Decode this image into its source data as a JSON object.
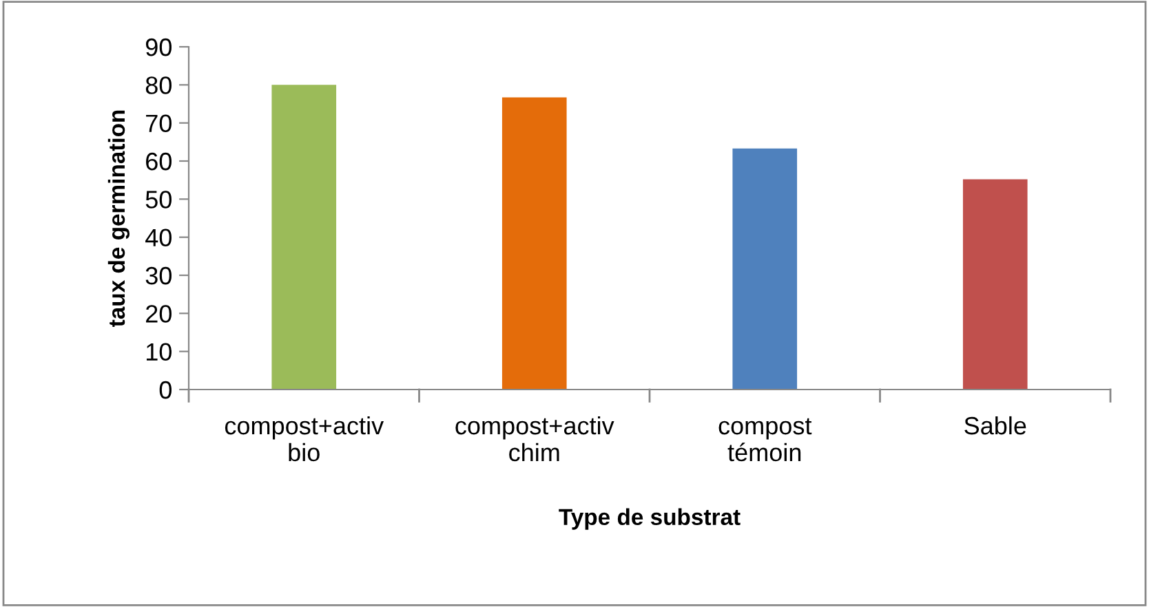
{
  "chart_data": {
    "type": "bar",
    "xlabel": "Type de substrat",
    "ylabel": "taux de germination",
    "categories": [
      "compost+activ\nbio",
      "compost+activ\nchim",
      "compost\ntémoin",
      "Sable"
    ],
    "values": [
      80,
      76.7,
      63.3,
      55.2
    ],
    "colors": [
      "#9bbb59",
      "#e46c0a",
      "#4f81bd",
      "#c0504d"
    ],
    "ylim": [
      0,
      90
    ],
    "yticks": [
      0,
      10,
      20,
      30,
      40,
      50,
      60,
      70,
      80,
      90
    ],
    "grid": false,
    "legend": false
  }
}
